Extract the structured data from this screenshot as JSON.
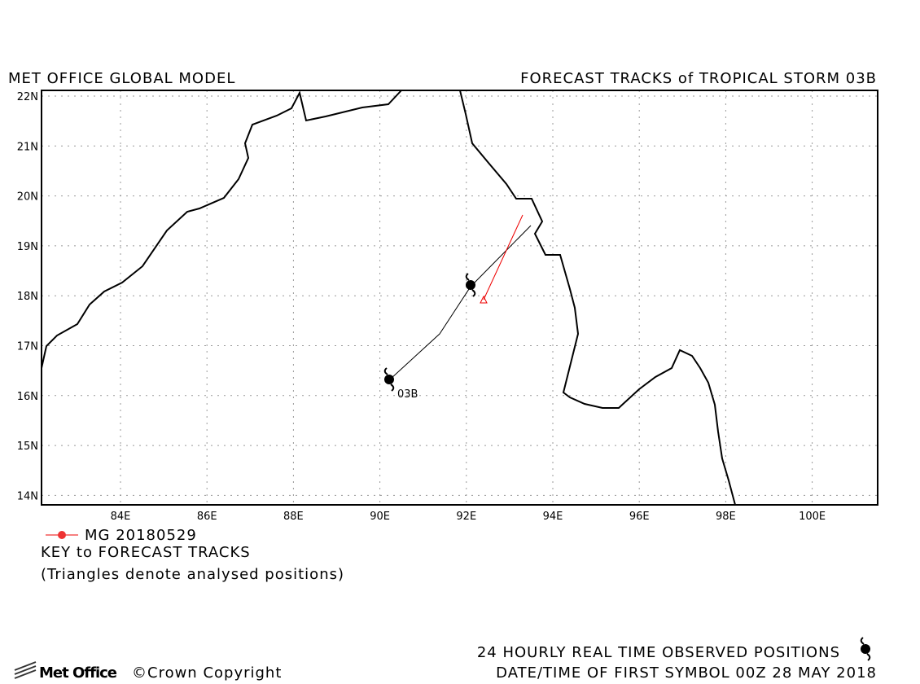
{
  "header": {
    "left_title": "MET OFFICE GLOBAL MODEL",
    "right_title": "FORECAST TRACKS of TROPICAL STORM 03B"
  },
  "map": {
    "lat_labels": [
      "22N",
      "21N",
      "20N",
      "19N",
      "18N",
      "17N",
      "16N",
      "15N",
      "14N"
    ],
    "lon_labels": [
      "84E",
      "86E",
      "88E",
      "90E",
      "92E",
      "94E",
      "96E",
      "98E",
      "100E"
    ],
    "storm_label": "03B"
  },
  "legend": {
    "entry": "MG 20180529",
    "key": "KEY to FORECAST TRACKS",
    "note": "(Triangles denote analysed positions)"
  },
  "footer": {
    "logo": "Met Office",
    "copyright": "©Crown Copyright",
    "observed": "24 HOURLY REAL TIME OBSERVED POSITIONS",
    "first_symbol": "DATE/TIME OF FIRST SYMBOL 00Z 28 MAY 2018"
  }
}
